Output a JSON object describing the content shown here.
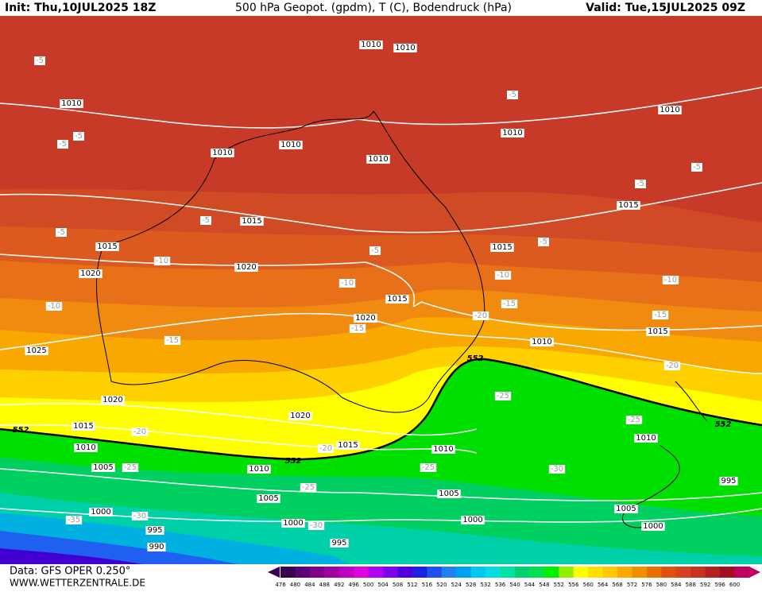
{
  "header": {
    "init": "Init: Thu,10JUL2025 18Z",
    "title": "500 hPa Geopot. (gpdm), T (C), Bodendruck (hPa)",
    "valid": "Valid: Tue,15JUL2025 09Z"
  },
  "footer": {
    "source": "Data: GFS OPER 0.250°",
    "website": "WWW.WETTERZENTRALE.DE"
  },
  "colorbar": {
    "ticks": [
      476,
      480,
      484,
      488,
      492,
      496,
      500,
      504,
      508,
      512,
      516,
      520,
      524,
      528,
      532,
      536,
      540,
      544,
      548,
      552,
      556,
      560,
      564,
      568,
      572,
      576,
      580,
      584,
      588,
      592,
      596,
      600
    ],
    "colors": [
      "#3a0050",
      "#5a0070",
      "#80008a",
      "#a000a0",
      "#c000c0",
      "#e000e0",
      "#b000f0",
      "#8000f0",
      "#5000e0",
      "#2020e0",
      "#2050f0",
      "#2080f0",
      "#00a0f0",
      "#00c8f0",
      "#00e0e0",
      "#00e0a0",
      "#00d070",
      "#00e050",
      "#00f000",
      "#90f000",
      "#ffff00",
      "#ffe000",
      "#ffc800",
      "#ffa800",
      "#f09000",
      "#e87000",
      "#e05010",
      "#d84020",
      "#c83020",
      "#b02020",
      "#a01020",
      "#c00060"
    ]
  },
  "isobar_labels": [
    "1010",
    "1010",
    "1010",
    "1010",
    "1010",
    "1010",
    "1010",
    "1010",
    "1010",
    "1010",
    "1010",
    "1010",
    "1010",
    "1015",
    "1015",
    "1015",
    "1015",
    "1015",
    "1015",
    "1015",
    "1015",
    "1020",
    "1020",
    "1020",
    "1020",
    "1020",
    "1025",
    "1005",
    "1005",
    "1005",
    "1005",
    "1000",
    "1000",
    "1000",
    "1000",
    "995",
    "995",
    "995",
    "990"
  ],
  "geopotential_labels": [
    "552",
    "552",
    "552",
    "552"
  ],
  "isotherm_labels": [
    "-5",
    "-5",
    "-5",
    "-5",
    "-5",
    "-5",
    "-5",
    "-5",
    "-5",
    "-5",
    "-10",
    "-10",
    "-10",
    "-10",
    "-10",
    "-15",
    "-15",
    "-15",
    "-15",
    "-20",
    "-20",
    "-20",
    "-20",
    "-25",
    "-25",
    "-25",
    "-25",
    "-25",
    "-30",
    "-30",
    "-30",
    "-35"
  ]
}
